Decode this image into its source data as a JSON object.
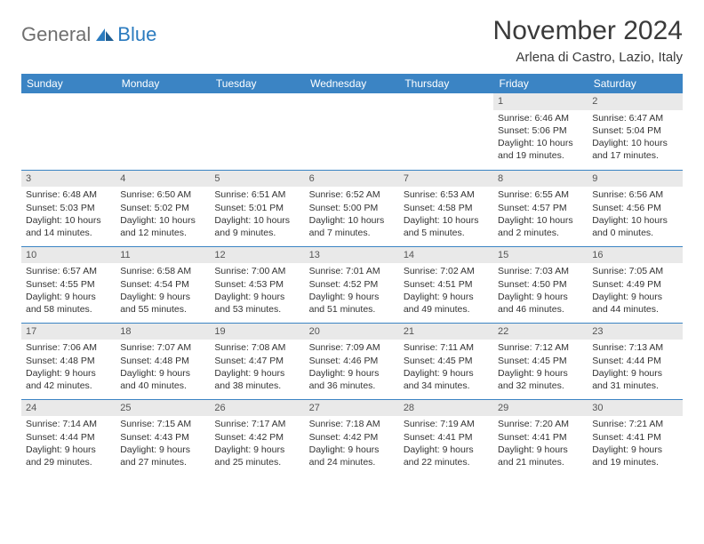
{
  "logo": {
    "text1": "General",
    "text2": "Blue"
  },
  "title": "November 2024",
  "subtitle": "Arlena di Castro, Lazio, Italy",
  "colors": {
    "header_bg": "#3b84c4",
    "header_text": "#ffffff",
    "daynum_bg": "#e9e9e9",
    "border": "#3b84c4",
    "logo_gray": "#6f6f6f",
    "logo_blue": "#2b7bbf"
  },
  "day_names": [
    "Sunday",
    "Monday",
    "Tuesday",
    "Wednesday",
    "Thursday",
    "Friday",
    "Saturday"
  ],
  "weeks": [
    [
      {
        "empty": true
      },
      {
        "empty": true
      },
      {
        "empty": true
      },
      {
        "empty": true
      },
      {
        "empty": true
      },
      {
        "num": "1",
        "sunrise": "Sunrise: 6:46 AM",
        "sunset": "Sunset: 5:06 PM",
        "daylight": "Daylight: 10 hours and 19 minutes."
      },
      {
        "num": "2",
        "sunrise": "Sunrise: 6:47 AM",
        "sunset": "Sunset: 5:04 PM",
        "daylight": "Daylight: 10 hours and 17 minutes."
      }
    ],
    [
      {
        "num": "3",
        "sunrise": "Sunrise: 6:48 AM",
        "sunset": "Sunset: 5:03 PM",
        "daylight": "Daylight: 10 hours and 14 minutes."
      },
      {
        "num": "4",
        "sunrise": "Sunrise: 6:50 AM",
        "sunset": "Sunset: 5:02 PM",
        "daylight": "Daylight: 10 hours and 12 minutes."
      },
      {
        "num": "5",
        "sunrise": "Sunrise: 6:51 AM",
        "sunset": "Sunset: 5:01 PM",
        "daylight": "Daylight: 10 hours and 9 minutes."
      },
      {
        "num": "6",
        "sunrise": "Sunrise: 6:52 AM",
        "sunset": "Sunset: 5:00 PM",
        "daylight": "Daylight: 10 hours and 7 minutes."
      },
      {
        "num": "7",
        "sunrise": "Sunrise: 6:53 AM",
        "sunset": "Sunset: 4:58 PM",
        "daylight": "Daylight: 10 hours and 5 minutes."
      },
      {
        "num": "8",
        "sunrise": "Sunrise: 6:55 AM",
        "sunset": "Sunset: 4:57 PM",
        "daylight": "Daylight: 10 hours and 2 minutes."
      },
      {
        "num": "9",
        "sunrise": "Sunrise: 6:56 AM",
        "sunset": "Sunset: 4:56 PM",
        "daylight": "Daylight: 10 hours and 0 minutes."
      }
    ],
    [
      {
        "num": "10",
        "sunrise": "Sunrise: 6:57 AM",
        "sunset": "Sunset: 4:55 PM",
        "daylight": "Daylight: 9 hours and 58 minutes."
      },
      {
        "num": "11",
        "sunrise": "Sunrise: 6:58 AM",
        "sunset": "Sunset: 4:54 PM",
        "daylight": "Daylight: 9 hours and 55 minutes."
      },
      {
        "num": "12",
        "sunrise": "Sunrise: 7:00 AM",
        "sunset": "Sunset: 4:53 PM",
        "daylight": "Daylight: 9 hours and 53 minutes."
      },
      {
        "num": "13",
        "sunrise": "Sunrise: 7:01 AM",
        "sunset": "Sunset: 4:52 PM",
        "daylight": "Daylight: 9 hours and 51 minutes."
      },
      {
        "num": "14",
        "sunrise": "Sunrise: 7:02 AM",
        "sunset": "Sunset: 4:51 PM",
        "daylight": "Daylight: 9 hours and 49 minutes."
      },
      {
        "num": "15",
        "sunrise": "Sunrise: 7:03 AM",
        "sunset": "Sunset: 4:50 PM",
        "daylight": "Daylight: 9 hours and 46 minutes."
      },
      {
        "num": "16",
        "sunrise": "Sunrise: 7:05 AM",
        "sunset": "Sunset: 4:49 PM",
        "daylight": "Daylight: 9 hours and 44 minutes."
      }
    ],
    [
      {
        "num": "17",
        "sunrise": "Sunrise: 7:06 AM",
        "sunset": "Sunset: 4:48 PM",
        "daylight": "Daylight: 9 hours and 42 minutes."
      },
      {
        "num": "18",
        "sunrise": "Sunrise: 7:07 AM",
        "sunset": "Sunset: 4:48 PM",
        "daylight": "Daylight: 9 hours and 40 minutes."
      },
      {
        "num": "19",
        "sunrise": "Sunrise: 7:08 AM",
        "sunset": "Sunset: 4:47 PM",
        "daylight": "Daylight: 9 hours and 38 minutes."
      },
      {
        "num": "20",
        "sunrise": "Sunrise: 7:09 AM",
        "sunset": "Sunset: 4:46 PM",
        "daylight": "Daylight: 9 hours and 36 minutes."
      },
      {
        "num": "21",
        "sunrise": "Sunrise: 7:11 AM",
        "sunset": "Sunset: 4:45 PM",
        "daylight": "Daylight: 9 hours and 34 minutes."
      },
      {
        "num": "22",
        "sunrise": "Sunrise: 7:12 AM",
        "sunset": "Sunset: 4:45 PM",
        "daylight": "Daylight: 9 hours and 32 minutes."
      },
      {
        "num": "23",
        "sunrise": "Sunrise: 7:13 AM",
        "sunset": "Sunset: 4:44 PM",
        "daylight": "Daylight: 9 hours and 31 minutes."
      }
    ],
    [
      {
        "num": "24",
        "sunrise": "Sunrise: 7:14 AM",
        "sunset": "Sunset: 4:44 PM",
        "daylight": "Daylight: 9 hours and 29 minutes."
      },
      {
        "num": "25",
        "sunrise": "Sunrise: 7:15 AM",
        "sunset": "Sunset: 4:43 PM",
        "daylight": "Daylight: 9 hours and 27 minutes."
      },
      {
        "num": "26",
        "sunrise": "Sunrise: 7:17 AM",
        "sunset": "Sunset: 4:42 PM",
        "daylight": "Daylight: 9 hours and 25 minutes."
      },
      {
        "num": "27",
        "sunrise": "Sunrise: 7:18 AM",
        "sunset": "Sunset: 4:42 PM",
        "daylight": "Daylight: 9 hours and 24 minutes."
      },
      {
        "num": "28",
        "sunrise": "Sunrise: 7:19 AM",
        "sunset": "Sunset: 4:41 PM",
        "daylight": "Daylight: 9 hours and 22 minutes."
      },
      {
        "num": "29",
        "sunrise": "Sunrise: 7:20 AM",
        "sunset": "Sunset: 4:41 PM",
        "daylight": "Daylight: 9 hours and 21 minutes."
      },
      {
        "num": "30",
        "sunrise": "Sunrise: 7:21 AM",
        "sunset": "Sunset: 4:41 PM",
        "daylight": "Daylight: 9 hours and 19 minutes."
      }
    ]
  ]
}
